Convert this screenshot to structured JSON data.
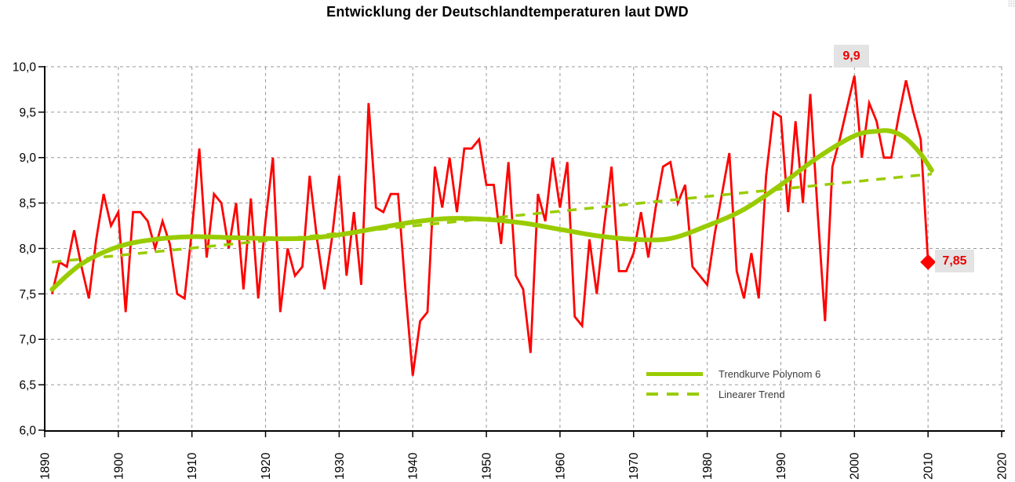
{
  "title": "Entwicklung der Deutschlandtemperaturen laut DWD",
  "legend": {
    "poly_label": "Trendkurve Polynom 6",
    "linear_label": "Linearer Trend"
  },
  "annotations": {
    "peak_label": "9,9",
    "peak_year": 2000,
    "peak_value": 9.9,
    "last_label": "7,85",
    "last_year": 2010,
    "last_value": 7.85
  },
  "colors": {
    "series_red": "#ff0000",
    "trend_green": "#99cc00",
    "grid": "#999999",
    "axis": "#000000",
    "label_bg": "#e3e3e3",
    "annotation_text": "#ee0000",
    "legend_text": "#3d3d3d"
  },
  "axes": {
    "x_tick_labels": [
      "1890",
      "1900",
      "1910",
      "1920",
      "1930",
      "1940",
      "1950",
      "1960",
      "1970",
      "1980",
      "1990",
      "2000",
      "2010",
      "2020"
    ],
    "x_tick_values": [
      1890,
      1900,
      1910,
      1920,
      1930,
      1940,
      1950,
      1960,
      1970,
      1980,
      1990,
      2000,
      2010,
      2020
    ],
    "y_tick_labels": [
      "6,0",
      "6,5",
      "7,0",
      "7,5",
      "8,0",
      "8,5",
      "9,0",
      "9,5",
      "10,0"
    ],
    "y_tick_values": [
      6.0,
      6.5,
      7.0,
      7.5,
      8.0,
      8.5,
      9.0,
      9.5,
      10.0
    ]
  },
  "chart_data": {
    "type": "line",
    "title": "Entwicklung der Deutschlandtemperaturen laut DWD",
    "xlabel": "",
    "ylabel": "",
    "x_range": [
      1890,
      2020
    ],
    "ylim": [
      6.0,
      10.0
    ],
    "grid": true,
    "legend_position": "bottom-right",
    "series": [
      {
        "name": "annual-temperature",
        "color": "#ff0000",
        "style": "solid",
        "x": [
          1891,
          1892,
          1893,
          1894,
          1895,
          1896,
          1897,
          1898,
          1899,
          1900,
          1901,
          1902,
          1903,
          1904,
          1905,
          1906,
          1907,
          1908,
          1909,
          1910,
          1911,
          1912,
          1913,
          1914,
          1915,
          1916,
          1917,
          1918,
          1919,
          1920,
          1921,
          1922,
          1923,
          1924,
          1925,
          1926,
          1927,
          1928,
          1929,
          1930,
          1931,
          1932,
          1933,
          1934,
          1935,
          1936,
          1937,
          1938,
          1939,
          1940,
          1941,
          1942,
          1943,
          1944,
          1945,
          1946,
          1947,
          1948,
          1949,
          1950,
          1951,
          1952,
          1953,
          1954,
          1955,
          1956,
          1957,
          1958,
          1959,
          1960,
          1961,
          1962,
          1963,
          1964,
          1965,
          1966,
          1967,
          1968,
          1969,
          1970,
          1971,
          1972,
          1973,
          1974,
          1975,
          1976,
          1977,
          1978,
          1979,
          1980,
          1981,
          1982,
          1983,
          1984,
          1985,
          1986,
          1987,
          1988,
          1989,
          1990,
          1991,
          1992,
          1993,
          1994,
          1995,
          1996,
          1997,
          1998,
          1999,
          2000,
          2001,
          2002,
          2003,
          2004,
          2005,
          2006,
          2007,
          2008,
          2009,
          2010
        ],
        "values": [
          7.5,
          7.85,
          7.8,
          8.2,
          7.8,
          7.45,
          8.1,
          8.6,
          8.25,
          8.4,
          7.3,
          8.4,
          8.4,
          8.3,
          8.0,
          8.3,
          8.05,
          7.5,
          7.45,
          8.2,
          9.1,
          7.9,
          8.6,
          8.5,
          8.0,
          8.5,
          7.55,
          8.55,
          7.45,
          8.3,
          9.0,
          7.3,
          8.0,
          7.7,
          7.8,
          8.8,
          8.1,
          7.55,
          8.1,
          8.8,
          7.7,
          8.4,
          7.6,
          9.6,
          8.45,
          8.4,
          8.6,
          8.6,
          7.55,
          6.6,
          7.2,
          7.3,
          8.9,
          8.45,
          9.0,
          8.4,
          9.1,
          9.1,
          9.2,
          8.7,
          8.7,
          8.05,
          8.95,
          7.7,
          7.55,
          6.85,
          8.6,
          8.3,
          9.0,
          8.45,
          8.95,
          7.25,
          7.15,
          8.1,
          7.5,
          8.25,
          8.9,
          7.75,
          7.75,
          7.95,
          8.4,
          7.9,
          8.45,
          8.9,
          8.95,
          8.5,
          8.7,
          7.8,
          7.7,
          7.6,
          8.15,
          8.6,
          9.05,
          7.75,
          7.45,
          7.95,
          7.45,
          8.8,
          9.5,
          9.45,
          8.4,
          9.4,
          8.5,
          9.7,
          8.4,
          7.2,
          8.9,
          9.2,
          9.55,
          9.9,
          9.0,
          9.6,
          9.4,
          9.0,
          9.0,
          9.45,
          9.85,
          9.5,
          9.2,
          7.85
        ]
      },
      {
        "name": "Trendkurve Polynom 6",
        "color": "#99cc00",
        "style": "solid-thick",
        "x": [
          1891,
          1895,
          1900,
          1905,
          1910,
          1915,
          1920,
          1925,
          1930,
          1935,
          1940,
          1945,
          1950,
          1955,
          1960,
          1965,
          1970,
          1975,
          1980,
          1985,
          1990,
          1995,
          2000,
          2003,
          2005,
          2007,
          2009,
          2010.5
        ],
        "values": [
          7.55,
          7.83,
          8.02,
          8.1,
          8.13,
          8.12,
          8.11,
          8.11,
          8.15,
          8.22,
          8.29,
          8.33,
          8.32,
          8.28,
          8.21,
          8.14,
          8.1,
          8.11,
          8.25,
          8.43,
          8.7,
          9.0,
          9.24,
          9.29,
          9.29,
          9.21,
          9.04,
          8.86
        ]
      },
      {
        "name": "Linearer Trend",
        "color": "#99cc00",
        "style": "dashed",
        "x": [
          1891,
          2010.5
        ],
        "values": [
          7.85,
          8.82
        ]
      }
    ]
  }
}
